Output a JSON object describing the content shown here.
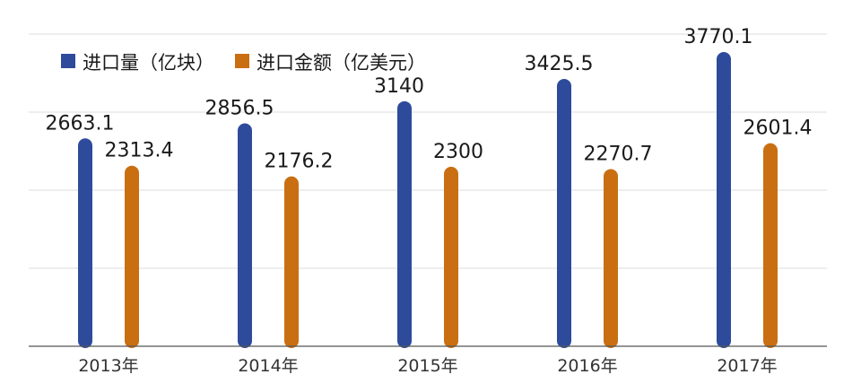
{
  "colors": {
    "series_0": "#2e4b9b",
    "series_1": "#c96f12",
    "grid": "#dcdcdc",
    "axis": "#555555"
  },
  "chart_data": {
    "type": "bar",
    "categories": [
      "2013年",
      "2014年",
      "2015年",
      "2016年",
      "2017年"
    ],
    "series": [
      {
        "name": "进口量（亿块）",
        "values": [
          2663.1,
          2856.5,
          3140,
          3425.5,
          3770.1
        ]
      },
      {
        "name": "进口金额（亿美元）",
        "values": [
          2313.4,
          2176.2,
          2300,
          2270.7,
          2601.4
        ]
      }
    ],
    "value_labels": [
      [
        "2663.1",
        "2856.5",
        "3140",
        "3425.5",
        "3770.1"
      ],
      [
        "2313.4",
        "2176.2",
        "2300",
        "2270.7",
        "2601.4"
      ]
    ],
    "ylim": [
      0,
      4000
    ],
    "grid": true,
    "legend": "top-left"
  }
}
